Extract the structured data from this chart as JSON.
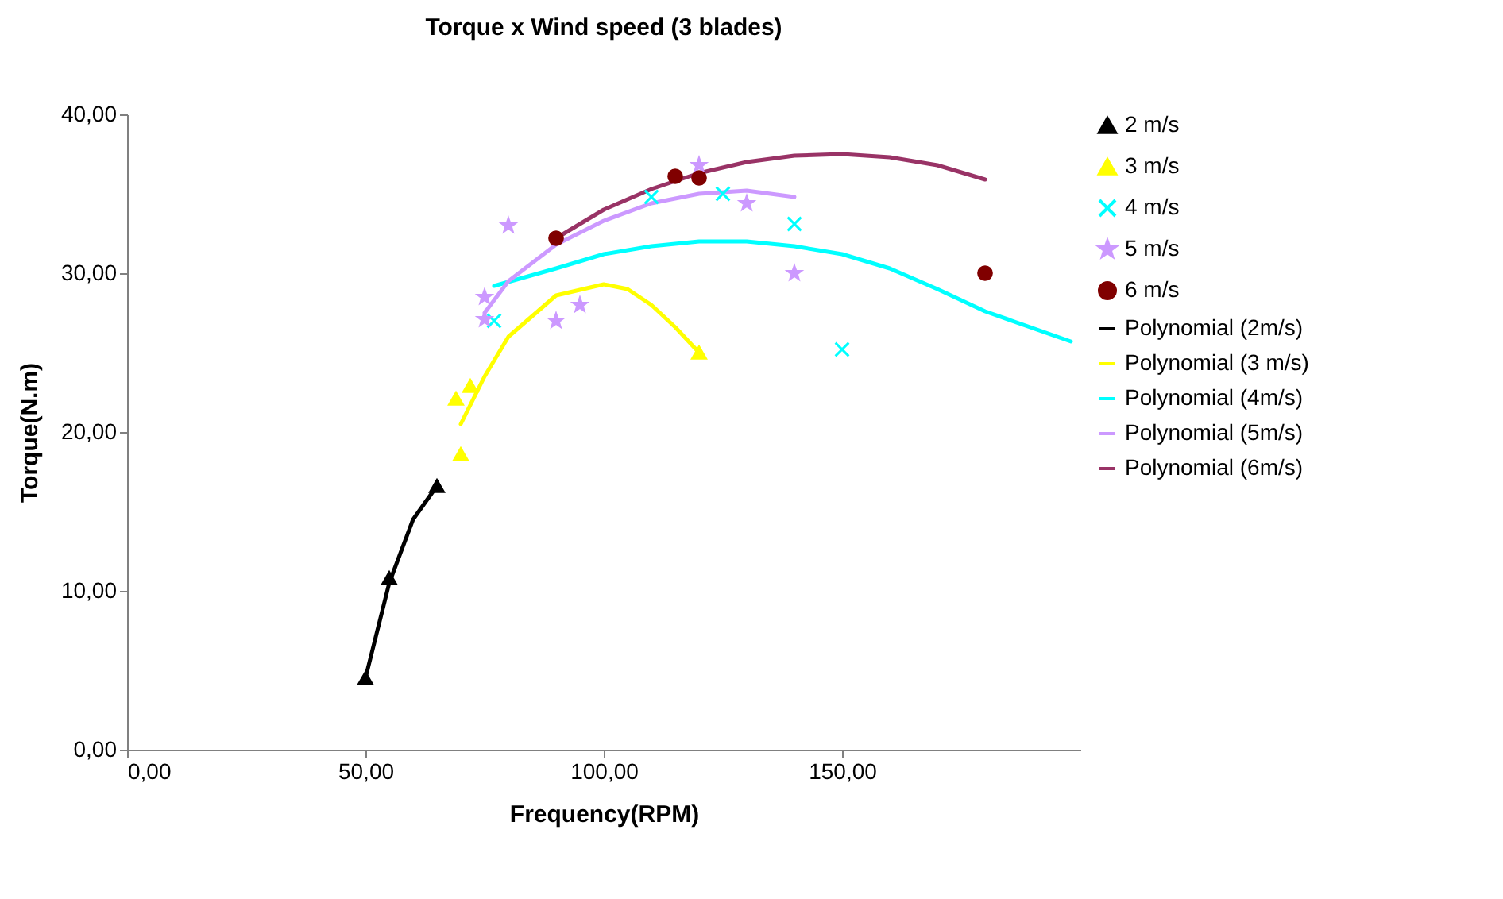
{
  "chart_data": {
    "type": "scatter",
    "title": "Torque x Wind speed (3 blades)",
    "xlabel": "Frequency(RPM)",
    "ylabel": "Torque(N.m)",
    "xlim": [
      0,
      200
    ],
    "xticks": [
      {
        "value": 0,
        "label": "0,00"
      },
      {
        "value": 50,
        "label": "50,00"
      },
      {
        "value": 100,
        "label": "100,00"
      },
      {
        "value": 150,
        "label": "150,00"
      }
    ],
    "ylim": [
      0,
      40
    ],
    "yticks": [
      {
        "value": 0,
        "label": "0,00"
      },
      {
        "value": 10,
        "label": "10,00"
      },
      {
        "value": 20,
        "label": "20,00"
      },
      {
        "value": 30,
        "label": "30,00"
      },
      {
        "value": 40,
        "label": "40,00"
      }
    ],
    "grid": false,
    "legend": "right",
    "series": [
      {
        "name": "2 m/s",
        "type": "scatter",
        "marker": "triangle",
        "color": "#000000",
        "x": [
          50,
          55,
          65
        ],
        "values": [
          4.5,
          10.8,
          16.6
        ]
      },
      {
        "name": "3 m/s",
        "type": "scatter",
        "marker": "triangle",
        "color": "#ffff00",
        "x": [
          69,
          70,
          72,
          120
        ],
        "values": [
          22.1,
          18.6,
          22.9,
          25
        ]
      },
      {
        "name": "4 m/s",
        "type": "scatter",
        "marker": "cross",
        "color": "#00ffff",
        "x": [
          77,
          110,
          125,
          140,
          150
        ],
        "values": [
          27,
          34.8,
          35,
          33.1,
          25.2
        ]
      },
      {
        "name": "5 m/s",
        "type": "scatter",
        "marker": "star",
        "color": "#cc99ff",
        "x": [
          75,
          75,
          80,
          90,
          95,
          120,
          130,
          140
        ],
        "values": [
          28.5,
          27.1,
          33,
          27,
          28,
          36.8,
          34.4,
          30
        ]
      },
      {
        "name": "6 m/s",
        "type": "scatter",
        "marker": "circle",
        "color": "#800000",
        "x": [
          90,
          115,
          120,
          180
        ],
        "values": [
          32.2,
          36.1,
          36,
          30
        ]
      },
      {
        "name": "Polynomial (2m/s)",
        "type": "line",
        "marker": "none",
        "line_style": "solid",
        "color": "#000000",
        "x": [
          50,
          55,
          60,
          65
        ],
        "values": [
          4.5,
          10.5,
          14.5,
          16.6
        ]
      },
      {
        "name": "Polynomial (3 m/s)",
        "type": "line",
        "marker": "none",
        "line_style": "solid",
        "color": "#ffff00",
        "x": [
          70,
          75,
          80,
          90,
          100,
          105,
          110,
          115,
          120
        ],
        "values": [
          20.5,
          23.5,
          26,
          28.6,
          29.3,
          29,
          28,
          26.6,
          25
        ]
      },
      {
        "name": "Polynomial (4m/s)",
        "type": "line",
        "marker": "none",
        "line_style": "solid",
        "color": "#00ffff",
        "x": [
          77,
          90,
          100,
          110,
          120,
          130,
          140,
          150,
          160,
          170,
          180,
          198
        ],
        "values": [
          29.2,
          30.3,
          31.2,
          31.7,
          32,
          32,
          31.7,
          31.2,
          30.3,
          29,
          27.6,
          25.7
        ]
      },
      {
        "name": "Polynomial (5m/s)",
        "type": "line",
        "marker": "none",
        "line_style": "solid",
        "color": "#cc99ff",
        "x": [
          75,
          80,
          90,
          100,
          110,
          120,
          130,
          140
        ],
        "values": [
          27.5,
          29.5,
          31.8,
          33.3,
          34.4,
          35,
          35.2,
          34.8
        ]
      },
      {
        "name": "Polynomial (6m/s)",
        "type": "line",
        "marker": "none",
        "line_style": "solid",
        "color": "#993366",
        "x": [
          90,
          100,
          110,
          120,
          130,
          140,
          150,
          160,
          170,
          180
        ],
        "values": [
          32.2,
          34,
          35.3,
          36.3,
          37,
          37.4,
          37.5,
          37.3,
          36.8,
          35.9
        ]
      }
    ]
  }
}
